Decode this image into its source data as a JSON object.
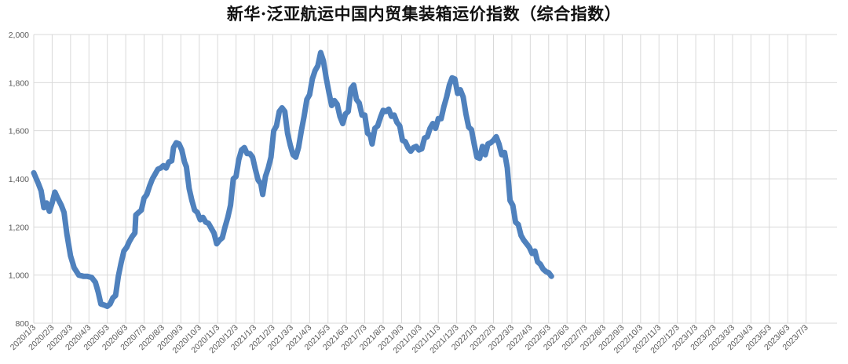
{
  "chart_data": {
    "type": "line",
    "title": "新华·泛亚航运中国内贸集装箱运价指数（综合指数）",
    "xlabel": "",
    "ylabel": "",
    "ylim": [
      800,
      2000
    ],
    "y_ticks": [
      800,
      1000,
      1200,
      1400,
      1600,
      1800,
      2000
    ],
    "y_tick_labels": [
      "800",
      "1,000",
      "1,200",
      "1,400",
      "1,600",
      "1,800",
      "2,000"
    ],
    "grid": true,
    "legend": "none",
    "color": "#4f81bd",
    "x_tick_labels": [
      "2020/1/3",
      "2020/2/3",
      "2020/3/3",
      "2020/4/3",
      "2020/5/3",
      "2020/6/3",
      "2020/7/3",
      "2020/8/3",
      "2020/9/3",
      "2020/10/3",
      "2020/11/3",
      "2020/12/3",
      "2021/1/3",
      "2021/2/3",
      "2021/3/3",
      "2021/4/3",
      "2021/5/3",
      "2021/6/3",
      "2021/7/3",
      "2021/8/3",
      "2021/9/3",
      "2021/10/3",
      "2021/11/3",
      "2021/12/3",
      "2022/1/3",
      "2022/2/3",
      "2022/3/3",
      "2022/4/3",
      "2022/5/3",
      "2022/6/3",
      "2022/7/3",
      "2022/8/3",
      "2022/9/3",
      "2022/10/3",
      "2022/11/3",
      "2022/12/3",
      "2023/1/3",
      "2023/2/3",
      "2023/3/3",
      "2023/4/3",
      "2023/5/3",
      "2023/6/3",
      "2023/7/3"
    ],
    "series": [
      {
        "values": [
          [
            0,
            1425
          ],
          [
            0.25,
            1380
          ],
          [
            0.4,
            1350
          ],
          [
            0.55,
            1280
          ],
          [
            0.7,
            1300
          ],
          [
            0.85,
            1265
          ],
          [
            1.0,
            1300
          ],
          [
            1.15,
            1345
          ],
          [
            1.3,
            1320
          ],
          [
            1.5,
            1290
          ],
          [
            1.65,
            1260
          ],
          [
            1.8,
            1170
          ],
          [
            2.0,
            1080
          ],
          [
            2.2,
            1030
          ],
          [
            2.45,
            1000
          ],
          [
            2.7,
            995
          ],
          [
            2.9,
            995
          ],
          [
            3.15,
            990
          ],
          [
            3.35,
            970
          ],
          [
            3.5,
            930
          ],
          [
            3.65,
            880
          ],
          [
            3.85,
            875
          ],
          [
            4.0,
            870
          ],
          [
            4.15,
            880
          ],
          [
            4.3,
            905
          ],
          [
            4.45,
            915
          ],
          [
            4.6,
            995
          ],
          [
            4.75,
            1050
          ],
          [
            4.9,
            1100
          ],
          [
            5.05,
            1115
          ],
          [
            5.2,
            1140
          ],
          [
            5.35,
            1160
          ],
          [
            5.5,
            1175
          ],
          [
            5.55,
            1250
          ],
          [
            5.7,
            1260
          ],
          [
            5.85,
            1270
          ],
          [
            6.0,
            1320
          ],
          [
            6.15,
            1335
          ],
          [
            6.3,
            1370
          ],
          [
            6.45,
            1400
          ],
          [
            6.6,
            1420
          ],
          [
            6.75,
            1440
          ],
          [
            6.9,
            1445
          ],
          [
            7.05,
            1455
          ],
          [
            7.2,
            1445
          ],
          [
            7.35,
            1470
          ],
          [
            7.5,
            1475
          ],
          [
            7.6,
            1530
          ],
          [
            7.75,
            1550
          ],
          [
            7.9,
            1545
          ],
          [
            8.05,
            1520
          ],
          [
            8.2,
            1470
          ],
          [
            8.3,
            1450
          ],
          [
            8.45,
            1360
          ],
          [
            8.6,
            1310
          ],
          [
            8.75,
            1270
          ],
          [
            8.9,
            1260
          ],
          [
            9.05,
            1230
          ],
          [
            9.2,
            1240
          ],
          [
            9.35,
            1220
          ],
          [
            9.5,
            1215
          ],
          [
            9.65,
            1195
          ],
          [
            9.8,
            1175
          ],
          [
            9.95,
            1130
          ],
          [
            10.1,
            1145
          ],
          [
            10.25,
            1155
          ],
          [
            10.4,
            1200
          ],
          [
            10.55,
            1240
          ],
          [
            10.7,
            1290
          ],
          [
            10.85,
            1400
          ],
          [
            11.0,
            1410
          ],
          [
            11.15,
            1480
          ],
          [
            11.3,
            1520
          ],
          [
            11.45,
            1530
          ],
          [
            11.6,
            1505
          ],
          [
            11.75,
            1505
          ],
          [
            11.9,
            1490
          ],
          [
            12.05,
            1440
          ],
          [
            12.2,
            1395
          ],
          [
            12.35,
            1380
          ],
          [
            12.45,
            1335
          ],
          [
            12.6,
            1410
          ],
          [
            12.75,
            1445
          ],
          [
            12.9,
            1490
          ],
          [
            13.05,
            1600
          ],
          [
            13.2,
            1620
          ],
          [
            13.35,
            1680
          ],
          [
            13.5,
            1695
          ],
          [
            13.65,
            1680
          ],
          [
            13.8,
            1590
          ],
          [
            13.95,
            1540
          ],
          [
            14.1,
            1500
          ],
          [
            14.25,
            1490
          ],
          [
            14.4,
            1530
          ],
          [
            14.55,
            1600
          ],
          [
            14.7,
            1660
          ],
          [
            14.85,
            1730
          ],
          [
            15.0,
            1750
          ],
          [
            15.15,
            1815
          ],
          [
            15.3,
            1850
          ],
          [
            15.45,
            1870
          ],
          [
            15.6,
            1925
          ],
          [
            15.75,
            1890
          ],
          [
            15.9,
            1820
          ],
          [
            16.05,
            1760
          ],
          [
            16.2,
            1705
          ],
          [
            16.35,
            1725
          ],
          [
            16.5,
            1710
          ],
          [
            16.65,
            1660
          ],
          [
            16.8,
            1630
          ],
          [
            16.95,
            1670
          ],
          [
            17.1,
            1680
          ],
          [
            17.25,
            1775
          ],
          [
            17.4,
            1790
          ],
          [
            17.55,
            1730
          ],
          [
            17.7,
            1715
          ],
          [
            17.85,
            1665
          ],
          [
            18.0,
            1665
          ],
          [
            18.15,
            1590
          ],
          [
            18.3,
            1580
          ],
          [
            18.4,
            1545
          ],
          [
            18.55,
            1610
          ],
          [
            18.7,
            1620
          ],
          [
            18.85,
            1655
          ],
          [
            19.0,
            1685
          ],
          [
            19.15,
            1680
          ],
          [
            19.3,
            1690
          ],
          [
            19.45,
            1660
          ],
          [
            19.6,
            1665
          ],
          [
            19.75,
            1635
          ],
          [
            19.9,
            1620
          ],
          [
            20.05,
            1560
          ],
          [
            20.2,
            1555
          ],
          [
            20.35,
            1530
          ],
          [
            20.5,
            1515
          ],
          [
            20.65,
            1530
          ],
          [
            20.8,
            1535
          ],
          [
            20.95,
            1520
          ],
          [
            21.1,
            1525
          ],
          [
            21.25,
            1570
          ],
          [
            21.4,
            1575
          ],
          [
            21.55,
            1610
          ],
          [
            21.7,
            1630
          ],
          [
            21.85,
            1610
          ],
          [
            22.0,
            1650
          ],
          [
            22.15,
            1650
          ],
          [
            22.3,
            1700
          ],
          [
            22.45,
            1740
          ],
          [
            22.6,
            1790
          ],
          [
            22.75,
            1820
          ],
          [
            22.9,
            1815
          ],
          [
            23.05,
            1755
          ],
          [
            23.2,
            1770
          ],
          [
            23.35,
            1740
          ],
          [
            23.5,
            1670
          ],
          [
            23.65,
            1615
          ],
          [
            23.8,
            1605
          ],
          [
            23.95,
            1545
          ],
          [
            24.1,
            1490
          ],
          [
            24.25,
            1485
          ],
          [
            24.4,
            1535
          ],
          [
            24.55,
            1500
          ],
          [
            24.7,
            1545
          ],
          [
            24.85,
            1550
          ],
          [
            25.0,
            1560
          ],
          [
            25.15,
            1575
          ],
          [
            25.3,
            1545
          ],
          [
            25.45,
            1500
          ],
          [
            25.6,
            1510
          ],
          [
            25.75,
            1445
          ],
          [
            25.9,
            1310
          ],
          [
            26.05,
            1290
          ],
          [
            26.2,
            1220
          ],
          [
            26.35,
            1210
          ],
          [
            26.5,
            1165
          ],
          [
            26.65,
            1145
          ],
          [
            26.8,
            1130
          ],
          [
            26.95,
            1115
          ],
          [
            27.1,
            1090
          ],
          [
            27.25,
            1100
          ],
          [
            27.4,
            1055
          ],
          [
            27.55,
            1045
          ],
          [
            27.7,
            1025
          ],
          [
            27.85,
            1015
          ],
          [
            28.0,
            1010
          ],
          [
            28.15,
            995
          ]
        ]
      }
    ]
  }
}
